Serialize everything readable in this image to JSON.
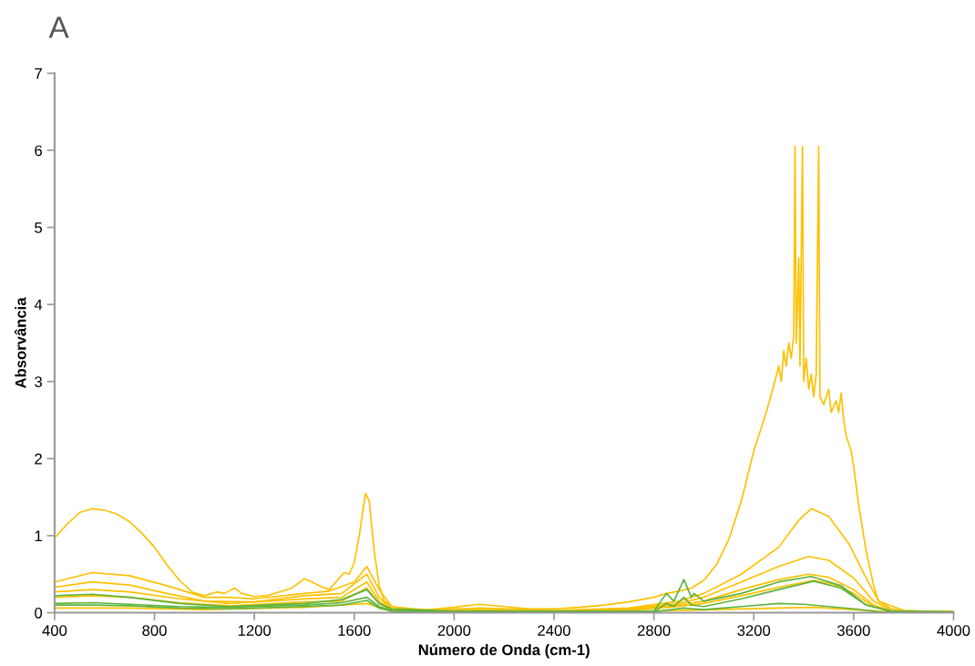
{
  "chart_data": {
    "type": "line",
    "title": "A",
    "xlabel": "Número de Onda (cm-1)",
    "ylabel": "Absorvância",
    "xlim": [
      400,
      4000
    ],
    "xticks": [
      400,
      800,
      1200,
      1600,
      2000,
      2400,
      2800,
      3200,
      3600,
      4000
    ],
    "ylim": [
      0,
      7
    ],
    "yticks": [
      0,
      1,
      2,
      3,
      4,
      5,
      6,
      7
    ],
    "grid": false,
    "marker": "none",
    "line_style": "solid",
    "series": [
      {
        "color": "#ffc000",
        "x": [
          400,
          450,
          500,
          550,
          600,
          650,
          700,
          750,
          800,
          850,
          900,
          950,
          1000,
          1050,
          1080,
          1120,
          1150,
          1200,
          1250,
          1300,
          1350,
          1400,
          1430,
          1460,
          1500,
          1540,
          1560,
          1580,
          1600,
          1620,
          1645,
          1660,
          1680,
          1700,
          1720,
          1760,
          1800,
          1900,
          2000,
          2100,
          2200,
          2300,
          2400,
          2500,
          2600,
          2700,
          2800,
          2850,
          2900,
          2950,
          3000,
          3050,
          3100,
          3150,
          3200,
          3250,
          3280,
          3300,
          3310,
          3320,
          3330,
          3340,
          3350,
          3360,
          3365,
          3370,
          3380,
          3385,
          3395,
          3400,
          3410,
          3420,
          3430,
          3440,
          3450,
          3460,
          3465,
          3480,
          3500,
          3510,
          3530,
          3540,
          3550,
          3560,
          3570,
          3590,
          3600,
          3620,
          3650,
          3680,
          3700,
          3750,
          3800,
          3900,
          4000
        ],
        "values": [
          0.97,
          1.15,
          1.3,
          1.35,
          1.33,
          1.28,
          1.18,
          1.03,
          0.85,
          0.62,
          0.42,
          0.27,
          0.22,
          0.27,
          0.25,
          0.32,
          0.25,
          0.21,
          0.22,
          0.27,
          0.32,
          0.44,
          0.4,
          0.35,
          0.3,
          0.45,
          0.52,
          0.5,
          0.65,
          1.0,
          1.55,
          1.45,
          0.8,
          0.35,
          0.15,
          0.07,
          0.05,
          0.04,
          0.07,
          0.11,
          0.08,
          0.05,
          0.05,
          0.07,
          0.1,
          0.14,
          0.2,
          0.25,
          0.28,
          0.32,
          0.42,
          0.62,
          0.95,
          1.45,
          2.1,
          2.6,
          2.95,
          3.2,
          3.0,
          3.4,
          3.2,
          3.5,
          3.3,
          3.6,
          6.05,
          3.5,
          4.6,
          3.2,
          6.05,
          3.0,
          3.3,
          2.9,
          3.1,
          2.8,
          3.1,
          6.05,
          2.8,
          2.7,
          2.9,
          2.6,
          2.75,
          2.6,
          2.85,
          2.5,
          2.3,
          2.1,
          1.9,
          1.4,
          0.8,
          0.35,
          0.15,
          0.05,
          0.02,
          0.01,
          0.01
        ]
      },
      {
        "color": "#ffc000",
        "x": [
          400,
          550,
          700,
          850,
          1000,
          1100,
          1200,
          1400,
          1500,
          1600,
          1650,
          1700,
          1750,
          1900,
          2100,
          2400,
          2700,
          2900,
          3000,
          3150,
          3300,
          3380,
          3430,
          3500,
          3580,
          3650,
          3700,
          3800,
          4000
        ],
        "values": [
          0.4,
          0.52,
          0.48,
          0.35,
          0.2,
          0.2,
          0.18,
          0.25,
          0.28,
          0.4,
          0.6,
          0.3,
          0.08,
          0.03,
          0.06,
          0.03,
          0.06,
          0.15,
          0.25,
          0.5,
          0.85,
          1.2,
          1.35,
          1.25,
          0.9,
          0.45,
          0.15,
          0.03,
          0.01
        ]
      },
      {
        "color": "#ffc000",
        "x": [
          400,
          550,
          700,
          850,
          1000,
          1200,
          1400,
          1550,
          1650,
          1700,
          1750,
          1900,
          2100,
          2400,
          2700,
          2900,
          3000,
          3150,
          3300,
          3420,
          3500,
          3600,
          3680,
          3750,
          4000
        ],
        "values": [
          0.33,
          0.4,
          0.36,
          0.25,
          0.15,
          0.14,
          0.22,
          0.25,
          0.5,
          0.2,
          0.05,
          0.02,
          0.04,
          0.02,
          0.05,
          0.12,
          0.2,
          0.4,
          0.6,
          0.73,
          0.68,
          0.45,
          0.15,
          0.03,
          0.01
        ]
      },
      {
        "color": "#ffc000",
        "x": [
          400,
          550,
          700,
          900,
          1100,
          1400,
          1550,
          1650,
          1700,
          1750,
          1900,
          2100,
          2400,
          2700,
          2900,
          3000,
          3150,
          3300,
          3420,
          3500,
          3600,
          3680,
          3750,
          4000
        ],
        "values": [
          0.27,
          0.3,
          0.27,
          0.18,
          0.12,
          0.18,
          0.2,
          0.4,
          0.15,
          0.04,
          0.02,
          0.03,
          0.02,
          0.04,
          0.1,
          0.15,
          0.3,
          0.43,
          0.5,
          0.46,
          0.3,
          0.1,
          0.02,
          0.01
        ]
      },
      {
        "color": "#ffc000",
        "x": [
          400,
          550,
          700,
          900,
          1100,
          1400,
          1550,
          1650,
          1700,
          1750,
          1900,
          2400,
          2700,
          2900,
          3000,
          3150,
          3300,
          3440,
          3520,
          3600,
          3680,
          3750,
          4000
        ],
        "values": [
          0.2,
          0.22,
          0.2,
          0.13,
          0.09,
          0.14,
          0.15,
          0.32,
          0.12,
          0.03,
          0.02,
          0.02,
          0.03,
          0.08,
          0.12,
          0.22,
          0.33,
          0.42,
          0.37,
          0.25,
          0.08,
          0.02,
          0.01
        ]
      },
      {
        "color": "#ffc000",
        "x": [
          400,
          700,
          1000,
          1400,
          1650,
          1750,
          2400,
          2900,
          3300,
          3440,
          3600,
          3750,
          4000
        ],
        "values": [
          0.06,
          0.06,
          0.04,
          0.07,
          0.12,
          0.02,
          0.01,
          0.03,
          0.06,
          0.07,
          0.04,
          0.01,
          0.01
        ]
      },
      {
        "color": "#5cb43c",
        "x": [
          400,
          550,
          700,
          900,
          1100,
          1400,
          1550,
          1650,
          1700,
          1750,
          2000,
          2800,
          2850,
          2880,
          2920,
          2950,
          2960,
          3000,
          3150,
          3300,
          3430,
          3550,
          3650,
          3750,
          4000
        ],
        "values": [
          0.22,
          0.24,
          0.2,
          0.12,
          0.08,
          0.12,
          0.17,
          0.3,
          0.12,
          0.05,
          0.02,
          0.02,
          0.25,
          0.15,
          0.43,
          0.2,
          0.25,
          0.15,
          0.25,
          0.4,
          0.47,
          0.35,
          0.1,
          0.02,
          0.01
        ]
      },
      {
        "color": "#5cb43c",
        "x": [
          400,
          550,
          700,
          900,
          1100,
          1400,
          1550,
          1650,
          1700,
          1750,
          2000,
          2800,
          2850,
          2880,
          2920,
          2950,
          3000,
          3150,
          3300,
          3440,
          3550,
          3650,
          3750,
          4000
        ],
        "values": [
          0.12,
          0.13,
          0.11,
          0.08,
          0.07,
          0.1,
          0.13,
          0.2,
          0.08,
          0.03,
          0.01,
          0.01,
          0.12,
          0.08,
          0.2,
          0.1,
          0.08,
          0.18,
          0.3,
          0.41,
          0.32,
          0.1,
          0.02,
          0.01
        ]
      },
      {
        "color": "#5cb43c",
        "x": [
          400,
          550,
          700,
          900,
          1100,
          1400,
          1550,
          1650,
          1700,
          1750,
          2000,
          2800,
          2920,
          3000,
          3150,
          3300,
          3400,
          3500,
          3600,
          3700,
          4000
        ],
        "values": [
          0.1,
          0.1,
          0.09,
          0.06,
          0.05,
          0.08,
          0.1,
          0.16,
          0.06,
          0.02,
          0.01,
          0.01,
          0.06,
          0.04,
          0.08,
          0.12,
          0.11,
          0.08,
          0.05,
          0.01,
          0.0
        ]
      }
    ]
  }
}
